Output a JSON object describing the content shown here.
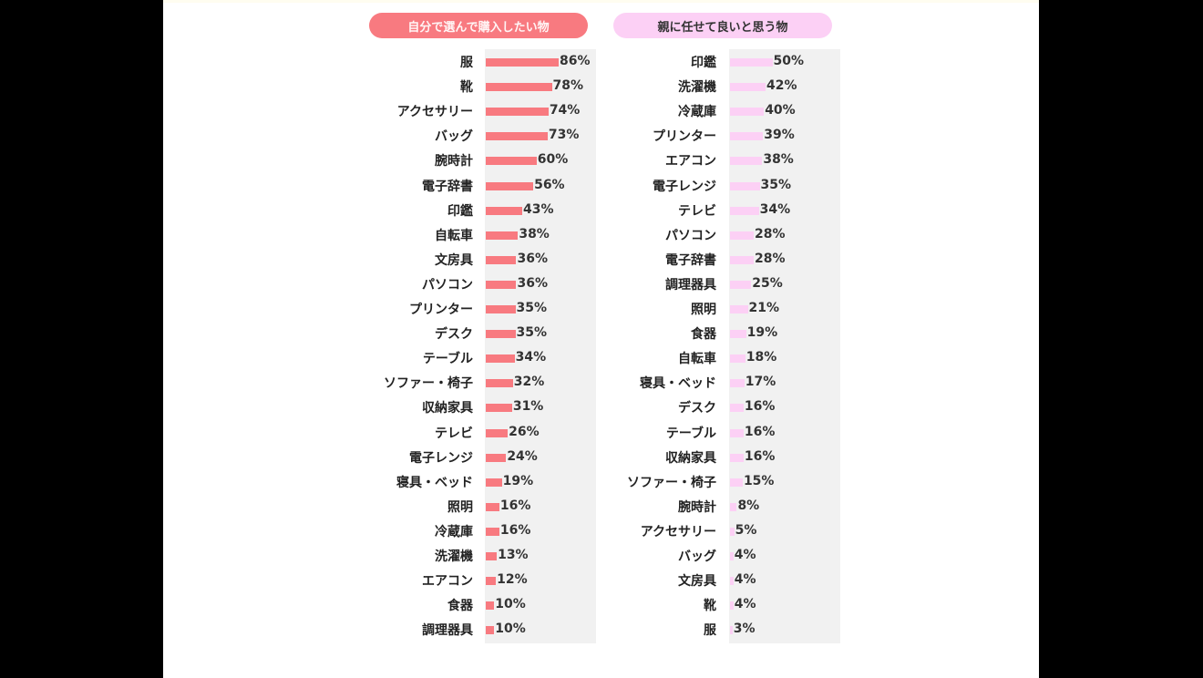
{
  "chart_data": [
    {
      "type": "bar",
      "orientation": "horizontal",
      "title": "自分で選んで購入したい物",
      "unit": "%",
      "color": "#f87a80",
      "categories": [
        "服",
        "靴",
        "アクセサリー",
        "バッグ",
        "腕時計",
        "電子辞書",
        "印鑑",
        "自転車",
        "文房具",
        "パソコン",
        "プリンター",
        "デスク",
        "テーブル",
        "ソファー・椅子",
        "収納家具",
        "テレビ",
        "電子レンジ",
        "寝具・ベッド",
        "照明",
        "冷蔵庫",
        "洗濯機",
        "エアコン",
        "食器",
        "調理器具"
      ],
      "values": [
        86,
        78,
        74,
        73,
        60,
        56,
        43,
        38,
        36,
        36,
        35,
        35,
        34,
        32,
        31,
        26,
        24,
        19,
        16,
        16,
        13,
        12,
        10,
        10
      ],
      "labels": [
        "86%",
        "78%",
        "74%",
        "73%",
        "60%",
        "56%",
        "43%",
        "38%",
        "36%",
        "36%",
        "35%",
        "35%",
        "34%",
        "32%",
        "31%",
        "26%",
        "24%",
        "19%",
        "16%",
        "16%",
        "13%",
        "12%",
        "10%",
        "10%"
      ],
      "xlabel": "",
      "ylabel": "",
      "xlim": [
        0,
        130
      ],
      "grid": false,
      "legend": null
    },
    {
      "type": "bar",
      "orientation": "horizontal",
      "title": "親に任せて良いと思う物",
      "unit": "%",
      "color": "#fcd0f5",
      "categories": [
        "印鑑",
        "洗濯機",
        "冷蔵庫",
        "プリンター",
        "エアコン",
        "電子レンジ",
        "テレビ",
        "パソコン",
        "電子辞書",
        "調理器具",
        "照明",
        "食器",
        "自転車",
        "寝具・ベッド",
        "デスク",
        "テーブル",
        "収納家具",
        "ソファー・椅子",
        "腕時計",
        "アクセサリー",
        "バッグ",
        "文房具",
        "靴",
        "服"
      ],
      "values": [
        50,
        42,
        40,
        39,
        38,
        35,
        34,
        28,
        28,
        25,
        21,
        19,
        18,
        17,
        16,
        16,
        16,
        15,
        8,
        5,
        4,
        4,
        4,
        3
      ],
      "labels": [
        "50%",
        "42%",
        "40%",
        "39%",
        "38%",
        "35%",
        "34%",
        "28%",
        "28%",
        "25%",
        "21%",
        "19%",
        "18%",
        "17%",
        "16%",
        "16%",
        "16%",
        "15%",
        "8%",
        "5%",
        "4%",
        "4%",
        "4%",
        "3%"
      ],
      "xlabel": "",
      "ylabel": "",
      "xlim": [
        0,
        130
      ],
      "grid": false,
      "legend": null
    }
  ],
  "headers": {
    "left": "自分で選んで購入したい物",
    "right": "親に任せて良いと思う物"
  }
}
